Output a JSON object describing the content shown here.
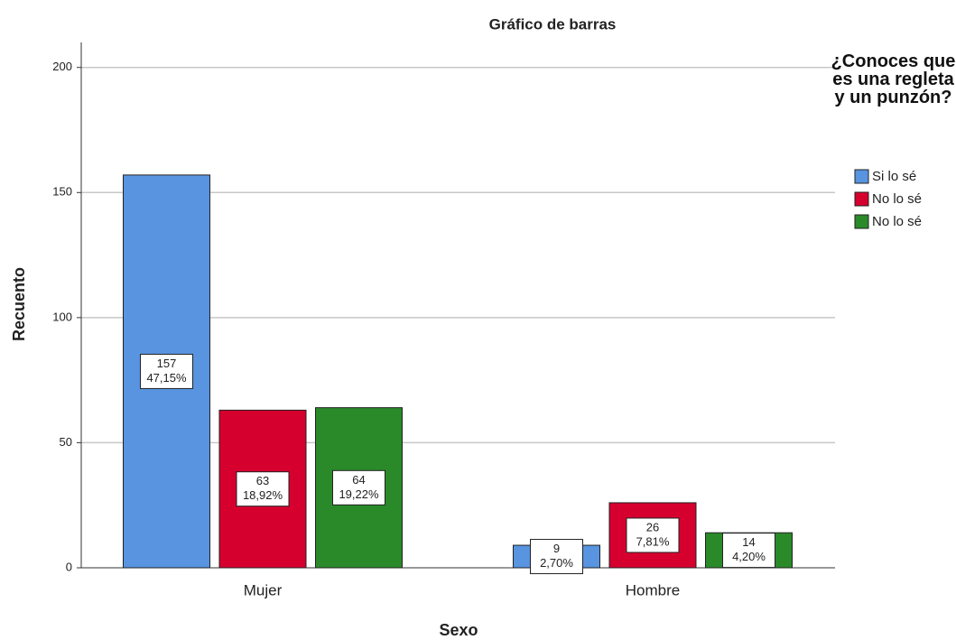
{
  "chart_data": {
    "type": "bar",
    "title": "Gráfico de barras",
    "x_label": "Sexo",
    "y_label": "Recuento",
    "legend_title": "¿Conoces que es una regleta y un punzón?",
    "legend_position": "right",
    "categories": [
      "Mujer",
      "Hombre"
    ],
    "series": [
      {
        "name": "Si lo sé",
        "color": "#5894e0",
        "values": [
          157,
          9
        ],
        "percent_labels": [
          "47,15%",
          "2,70%"
        ]
      },
      {
        "name": "No lo sé",
        "color": "#d6002f",
        "values": [
          63,
          26
        ],
        "percent_labels": [
          "18,92%",
          "7,81%"
        ]
      },
      {
        "name": "No lo sé",
        "color": "#2a8a2a",
        "values": [
          64,
          14
        ],
        "percent_labels": [
          "19,22%",
          "4,20%"
        ]
      }
    ],
    "ylim": [
      0,
      210
    ],
    "yticks": [
      0,
      50,
      100,
      150,
      200
    ],
    "grid": true
  }
}
